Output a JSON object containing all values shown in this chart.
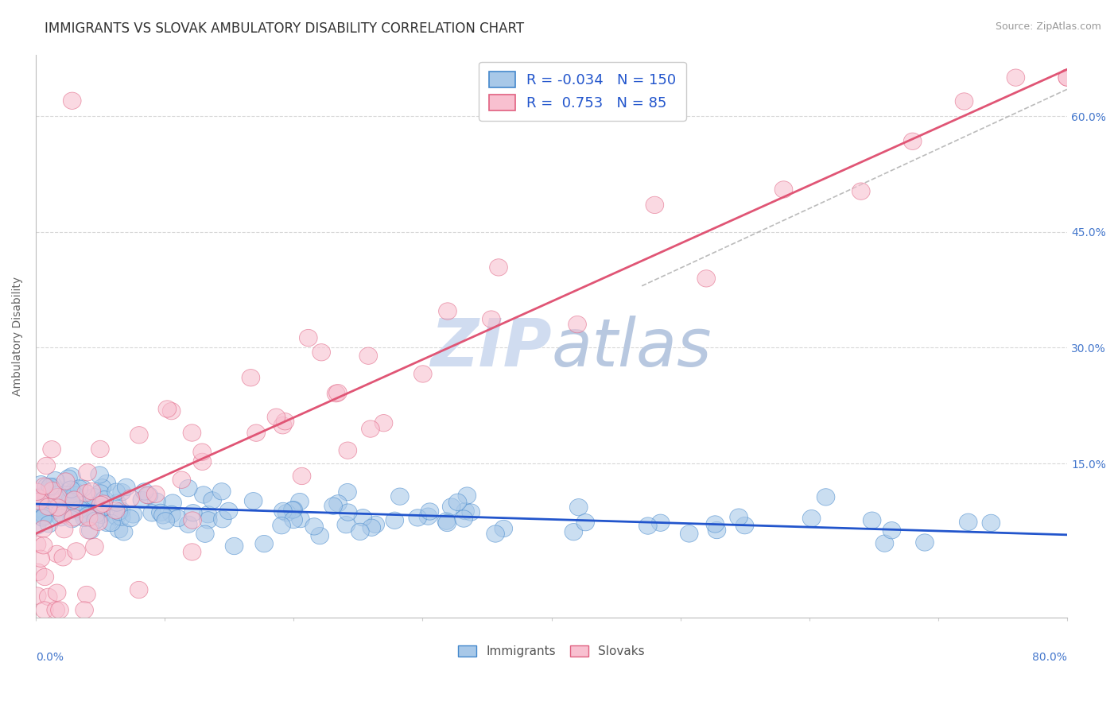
{
  "title": "IMMIGRANTS VS SLOVAK AMBULATORY DISABILITY CORRELATION CHART",
  "source": "Source: ZipAtlas.com",
  "ylabel": "Ambulatory Disability",
  "xlim": [
    0.0,
    0.8
  ],
  "ylim": [
    -0.05,
    0.68
  ],
  "immigrants_R": -0.034,
  "immigrants_N": 150,
  "slovaks_R": 0.753,
  "slovaks_N": 85,
  "blue_color": "#a8c8e8",
  "blue_edge": "#4488cc",
  "pink_color": "#f8c0d0",
  "pink_edge": "#e06080",
  "red_line_color": "#e05575",
  "blue_line_color": "#2255cc",
  "dash_line_color": "#bbbbbb",
  "watermark_color": "#d0dcf0",
  "grid_color": "#d8d8d8",
  "title_fontsize": 12,
  "label_fontsize": 10,
  "legend_fontsize": 13,
  "source_fontsize": 9,
  "ytick_vals": [
    0.0,
    0.15,
    0.3,
    0.45,
    0.6
  ],
  "ytick_labels": [
    "",
    "15.0%",
    "30.0%",
    "45.0%",
    "60.0%"
  ]
}
